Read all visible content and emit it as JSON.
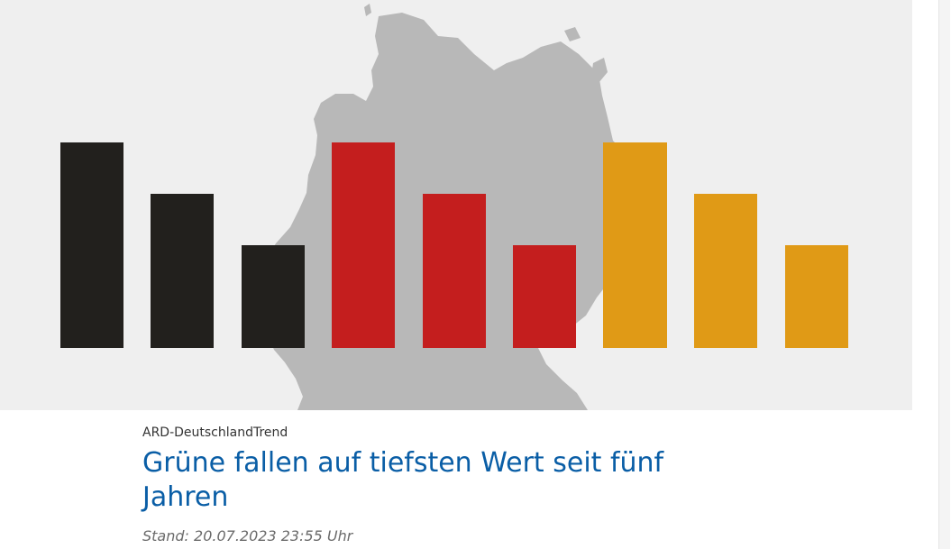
{
  "article": {
    "topline": "ARD-DeutschlandTrend",
    "headline": "Grüne fallen auf tiefsten Wert seit fünf Jahren",
    "stand": "Stand: 20.07.2023 23:55 Uhr"
  },
  "hero_image": {
    "icon": "germany-map-with-flag-colored-bars",
    "colors": {
      "background": "#efefef",
      "map": "#b8b8b8",
      "black": "#22201d",
      "red": "#c41e1e",
      "gold": "#e09a16"
    }
  }
}
